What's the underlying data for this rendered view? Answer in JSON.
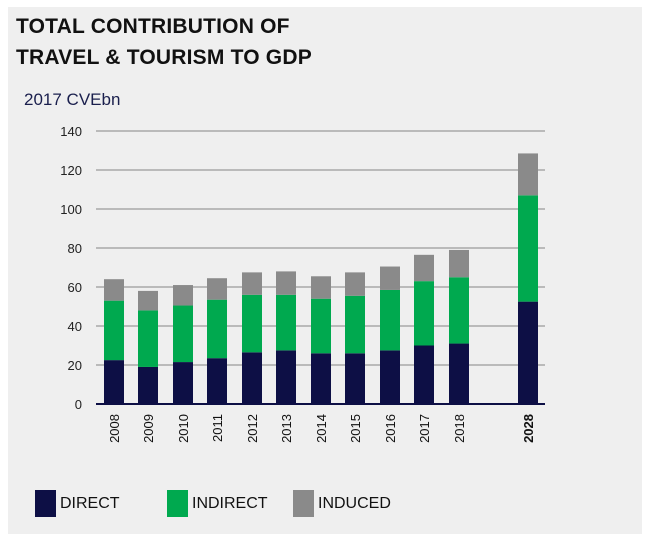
{
  "title_lines": [
    "TOTAL CONTRIBUTION OF",
    "TRAVEL & TOURISM TO GDP"
  ],
  "unit_label": "2017 CVEbn",
  "colors": {
    "direct": "#0d0f45",
    "indirect": "#00a94f",
    "induced": "#8a8a8a"
  },
  "legend": [
    {
      "key": "direct",
      "label": "DIRECT"
    },
    {
      "key": "indirect",
      "label": "INDIRECT"
    },
    {
      "key": "induced",
      "label": "INDUCED"
    }
  ],
  "chart_data": {
    "type": "bar",
    "stacked": true,
    "title": "TOTAL CONTRIBUTION OF TRAVEL & TOURISM TO GDP",
    "ylabel": "2017 CVEbn",
    "ylim": [
      0,
      140
    ],
    "yticks": [
      0,
      20,
      40,
      60,
      80,
      100,
      120,
      140
    ],
    "grid": true,
    "legend_position": "bottom",
    "categories": [
      "2008",
      "2009",
      "2010",
      "2011",
      "2012",
      "2013",
      "2014",
      "2015",
      "2016",
      "2017",
      "2018",
      "2028"
    ],
    "series": [
      {
        "name": "DIRECT",
        "values": [
          22.5,
          19,
          21.5,
          23.5,
          26.5,
          27.5,
          26,
          26,
          27.5,
          30,
          31,
          52.5
        ]
      },
      {
        "name": "INDIRECT",
        "values": [
          30.5,
          29,
          29,
          30,
          29.5,
          28.5,
          28,
          29.5,
          31,
          33,
          34,
          54.5
        ]
      },
      {
        "name": "INDUCED",
        "values": [
          11,
          10,
          10.5,
          11,
          11.5,
          12,
          11.5,
          12,
          12,
          13.5,
          14,
          21.5
        ]
      }
    ]
  }
}
